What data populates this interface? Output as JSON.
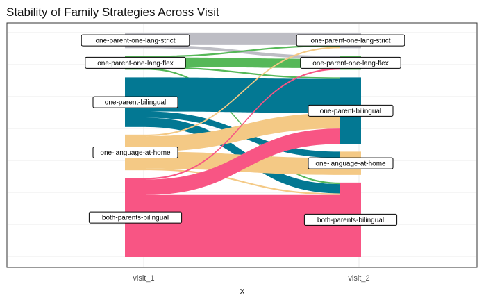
{
  "chart_data": {
    "type": "alluvial",
    "title": "Stability of Family Strategies Across Visit",
    "xlabel": "x",
    "ylabel": "",
    "x": [
      "visit_1",
      "visit_2"
    ],
    "grid": true,
    "legend": "none",
    "categories": [
      "one-parent-one-lang-strict",
      "one-parent-one-lang-flex",
      "one-parent-bilingual",
      "one-language-at-home",
      "both-parents-bilingual"
    ],
    "colors": {
      "one-parent-one-lang-strict": "#bdbdc4",
      "one-parent-one-lang-flex": "#56b858",
      "one-parent-bilingual": "#037893",
      "one-language-at-home": "#f4c985",
      "both-parents-bilingual": "#f85584"
    },
    "flows": [
      {
        "from": "one-parent-one-lang-strict",
        "to": "one-parent-one-lang-strict",
        "value": 4
      },
      {
        "from": "one-parent-one-lang-strict",
        "to": "one-parent-one-lang-flex",
        "value": 1
      },
      {
        "from": "one-parent-one-lang-flex",
        "to": "one-parent-one-lang-strict",
        "value": 0.5
      },
      {
        "from": "one-parent-one-lang-flex",
        "to": "one-parent-one-lang-flex",
        "value": 3
      },
      {
        "from": "one-parent-one-lang-flex",
        "to": "one-parent-bilingual",
        "value": 0.5
      },
      {
        "from": "one-parent-one-lang-flex",
        "to": "both-parents-bilingual",
        "value": 0.5
      },
      {
        "from": "one-parent-bilingual",
        "to": "one-parent-bilingual",
        "value": 11
      },
      {
        "from": "one-parent-bilingual",
        "to": "one-language-at-home",
        "value": 2
      },
      {
        "from": "one-parent-bilingual",
        "to": "both-parents-bilingual",
        "value": 3
      },
      {
        "from": "one-language-at-home",
        "to": "one-parent-one-lang-strict",
        "value": 0.5
      },
      {
        "from": "one-language-at-home",
        "to": "one-parent-bilingual",
        "value": 5
      },
      {
        "from": "one-language-at-home",
        "to": "one-language-at-home",
        "value": 5.5
      },
      {
        "from": "one-language-at-home",
        "to": "both-parents-bilingual",
        "value": 0.5
      },
      {
        "from": "both-parents-bilingual",
        "to": "one-parent-one-lang-flex",
        "value": 0.5
      },
      {
        "from": "both-parents-bilingual",
        "to": "one-parent-bilingual",
        "value": 5
      },
      {
        "from": "both-parents-bilingual",
        "to": "both-parents-bilingual",
        "value": 20
      }
    ]
  }
}
